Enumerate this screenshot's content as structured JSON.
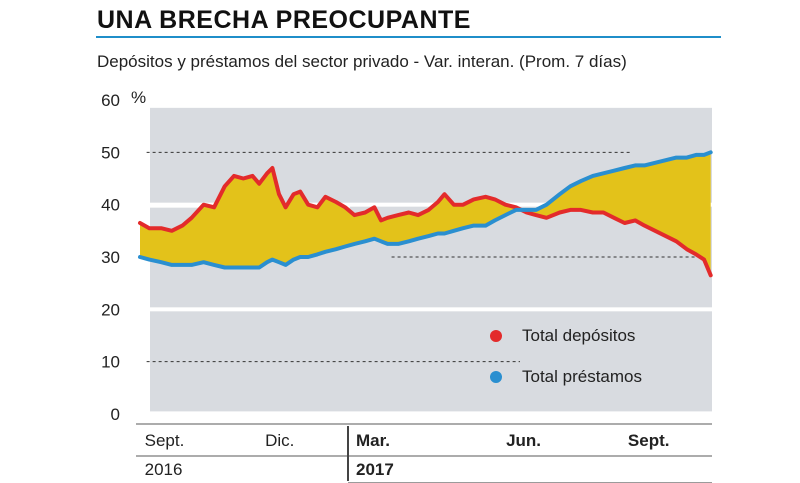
{
  "header": {
    "title": "UNA BRECHA PREOCUPANTE",
    "subtitle": "Depósitos y préstamos del sector privado - Var. interan. (Prom. 7 días)"
  },
  "colors": {
    "depositos": "#e32b2b",
    "prestamos": "#2a8fd0",
    "gap_fill": "#e3c21a",
    "plot_bg": "#d8dbe0",
    "accent": "#1f8ec9"
  },
  "chart_data": {
    "type": "line",
    "title": "UNA BRECHA PREOCUPANTE",
    "subtitle": "Depósitos y préstamos del sector privado - Var. interan. (Prom. 7 días)",
    "y_unit": "%",
    "ylim": [
      0,
      60
    ],
    "y_ticks": [
      "0",
      "10",
      "20",
      "30",
      "40",
      "50",
      "60"
    ],
    "x_range": [
      "2016-08-27",
      "2017-11-02"
    ],
    "x_ticks": [
      {
        "date": "2016-09-01",
        "label": "Sept.",
        "year": "2016"
      },
      {
        "date": "2016-12-01",
        "label": "Dic.",
        "year": ""
      },
      {
        "date": "2017-03-01",
        "label": "Mar.",
        "year": "2017"
      },
      {
        "date": "2017-06-01",
        "label": "Jun.",
        "year": ""
      },
      {
        "date": "2017-09-01",
        "label": "Sept.",
        "year": ""
      }
    ],
    "legend_position": "bottom-right",
    "gap_shaded": true,
    "series": [
      {
        "name": "Total depósitos",
        "color": "#e32b2b",
        "points": [
          {
            "date": "2016-08-27",
            "value": 36.5
          },
          {
            "date": "2016-09-03",
            "value": 35.5
          },
          {
            "date": "2016-09-12",
            "value": 35.5
          },
          {
            "date": "2016-09-20",
            "value": 35.0
          },
          {
            "date": "2016-09-28",
            "value": 36.0
          },
          {
            "date": "2016-10-05",
            "value": 37.5
          },
          {
            "date": "2016-10-14",
            "value": 40.0
          },
          {
            "date": "2016-10-22",
            "value": 39.5
          },
          {
            "date": "2016-10-30",
            "value": 43.5
          },
          {
            "date": "2016-11-06",
            "value": 45.5
          },
          {
            "date": "2016-11-13",
            "value": 45.0
          },
          {
            "date": "2016-11-20",
            "value": 45.5
          },
          {
            "date": "2016-11-25",
            "value": 44.0
          },
          {
            "date": "2016-12-01",
            "value": 46.0
          },
          {
            "date": "2016-12-05",
            "value": 47.0
          },
          {
            "date": "2016-12-10",
            "value": 42.0
          },
          {
            "date": "2016-12-15",
            "value": 39.5
          },
          {
            "date": "2016-12-21",
            "value": 42.0
          },
          {
            "date": "2016-12-26",
            "value": 42.5
          },
          {
            "date": "2017-01-01",
            "value": 40.0
          },
          {
            "date": "2017-01-08",
            "value": 39.5
          },
          {
            "date": "2017-01-14",
            "value": 41.5
          },
          {
            "date": "2017-01-22",
            "value": 40.5
          },
          {
            "date": "2017-01-29",
            "value": 39.5
          },
          {
            "date": "2017-02-05",
            "value": 38.0
          },
          {
            "date": "2017-02-13",
            "value": 38.5
          },
          {
            "date": "2017-02-20",
            "value": 39.5
          },
          {
            "date": "2017-02-25",
            "value": 37.0
          },
          {
            "date": "2017-03-02",
            "value": 37.5
          },
          {
            "date": "2017-03-10",
            "value": 38.0
          },
          {
            "date": "2017-03-18",
            "value": 38.5
          },
          {
            "date": "2017-03-25",
            "value": 38.0
          },
          {
            "date": "2017-04-02",
            "value": 39.0
          },
          {
            "date": "2017-04-09",
            "value": 40.5
          },
          {
            "date": "2017-04-14",
            "value": 42.0
          },
          {
            "date": "2017-04-21",
            "value": 40.0
          },
          {
            "date": "2017-04-28",
            "value": 40.0
          },
          {
            "date": "2017-05-06",
            "value": 41.0
          },
          {
            "date": "2017-05-15",
            "value": 41.5
          },
          {
            "date": "2017-05-22",
            "value": 41.0
          },
          {
            "date": "2017-05-30",
            "value": 40.0
          },
          {
            "date": "2017-06-07",
            "value": 39.5
          },
          {
            "date": "2017-06-15",
            "value": 38.5
          },
          {
            "date": "2017-06-22",
            "value": 38.0
          },
          {
            "date": "2017-06-30",
            "value": 37.5
          },
          {
            "date": "2017-07-10",
            "value": 38.5
          },
          {
            "date": "2017-07-18",
            "value": 39.0
          },
          {
            "date": "2017-07-26",
            "value": 39.0
          },
          {
            "date": "2017-08-04",
            "value": 38.5
          },
          {
            "date": "2017-08-12",
            "value": 38.5
          },
          {
            "date": "2017-08-20",
            "value": 37.5
          },
          {
            "date": "2017-08-28",
            "value": 36.5
          },
          {
            "date": "2017-09-05",
            "value": 37.0
          },
          {
            "date": "2017-09-12",
            "value": 36.0
          },
          {
            "date": "2017-09-20",
            "value": 35.0
          },
          {
            "date": "2017-09-28",
            "value": 34.0
          },
          {
            "date": "2017-10-06",
            "value": 33.0
          },
          {
            "date": "2017-10-14",
            "value": 31.5
          },
          {
            "date": "2017-10-21",
            "value": 30.5
          },
          {
            "date": "2017-10-27",
            "value": 29.5
          },
          {
            "date": "2017-11-01",
            "value": 26.5
          }
        ]
      },
      {
        "name": "Total préstamos",
        "color": "#2a8fd0",
        "points": [
          {
            "date": "2016-08-27",
            "value": 30.0
          },
          {
            "date": "2016-09-03",
            "value": 29.5
          },
          {
            "date": "2016-09-12",
            "value": 29.0
          },
          {
            "date": "2016-09-20",
            "value": 28.5
          },
          {
            "date": "2016-09-28",
            "value": 28.5
          },
          {
            "date": "2016-10-05",
            "value": 28.5
          },
          {
            "date": "2016-10-14",
            "value": 29.0
          },
          {
            "date": "2016-10-22",
            "value": 28.5
          },
          {
            "date": "2016-10-30",
            "value": 28.0
          },
          {
            "date": "2016-11-06",
            "value": 28.0
          },
          {
            "date": "2016-11-13",
            "value": 28.0
          },
          {
            "date": "2016-11-20",
            "value": 28.0
          },
          {
            "date": "2016-11-25",
            "value": 28.0
          },
          {
            "date": "2016-12-01",
            "value": 29.0
          },
          {
            "date": "2016-12-05",
            "value": 29.5
          },
          {
            "date": "2016-12-10",
            "value": 29.0
          },
          {
            "date": "2016-12-15",
            "value": 28.5
          },
          {
            "date": "2016-12-21",
            "value": 29.5
          },
          {
            "date": "2016-12-26",
            "value": 30.0
          },
          {
            "date": "2017-01-01",
            "value": 30.0
          },
          {
            "date": "2017-01-08",
            "value": 30.5
          },
          {
            "date": "2017-01-14",
            "value": 31.0
          },
          {
            "date": "2017-01-22",
            "value": 31.5
          },
          {
            "date": "2017-01-29",
            "value": 32.0
          },
          {
            "date": "2017-02-05",
            "value": 32.5
          },
          {
            "date": "2017-02-13",
            "value": 33.0
          },
          {
            "date": "2017-02-20",
            "value": 33.5
          },
          {
            "date": "2017-02-25",
            "value": 33.0
          },
          {
            "date": "2017-03-02",
            "value": 32.5
          },
          {
            "date": "2017-03-10",
            "value": 32.5
          },
          {
            "date": "2017-03-18",
            "value": 33.0
          },
          {
            "date": "2017-03-25",
            "value": 33.5
          },
          {
            "date": "2017-04-02",
            "value": 34.0
          },
          {
            "date": "2017-04-09",
            "value": 34.5
          },
          {
            "date": "2017-04-14",
            "value": 34.5
          },
          {
            "date": "2017-04-21",
            "value": 35.0
          },
          {
            "date": "2017-04-28",
            "value": 35.5
          },
          {
            "date": "2017-05-06",
            "value": 36.0
          },
          {
            "date": "2017-05-15",
            "value": 36.0
          },
          {
            "date": "2017-05-22",
            "value": 37.0
          },
          {
            "date": "2017-05-30",
            "value": 38.0
          },
          {
            "date": "2017-06-07",
            "value": 39.0
          },
          {
            "date": "2017-06-15",
            "value": 39.0
          },
          {
            "date": "2017-06-22",
            "value": 39.0
          },
          {
            "date": "2017-06-30",
            "value": 40.0
          },
          {
            "date": "2017-07-10",
            "value": 42.0
          },
          {
            "date": "2017-07-18",
            "value": 43.5
          },
          {
            "date": "2017-07-26",
            "value": 44.5
          },
          {
            "date": "2017-08-04",
            "value": 45.5
          },
          {
            "date": "2017-08-12",
            "value": 46.0
          },
          {
            "date": "2017-08-20",
            "value": 46.5
          },
          {
            "date": "2017-08-28",
            "value": 47.0
          },
          {
            "date": "2017-09-05",
            "value": 47.5
          },
          {
            "date": "2017-09-12",
            "value": 47.5
          },
          {
            "date": "2017-09-20",
            "value": 48.0
          },
          {
            "date": "2017-09-28",
            "value": 48.5
          },
          {
            "date": "2017-10-06",
            "value": 49.0
          },
          {
            "date": "2017-10-14",
            "value": 49.0
          },
          {
            "date": "2017-10-21",
            "value": 49.5
          },
          {
            "date": "2017-10-27",
            "value": 49.5
          },
          {
            "date": "2017-11-01",
            "value": 50.0
          }
        ]
      }
    ],
    "reference_lines": [
      {
        "value": 50,
        "from": "2016-09-01",
        "to": "2017-09-01"
      },
      {
        "value": 30,
        "from": "2017-03-05",
        "to": "2017-10-20"
      },
      {
        "value": 10,
        "from": "2016-09-01",
        "to": "2017-06-10"
      }
    ]
  }
}
